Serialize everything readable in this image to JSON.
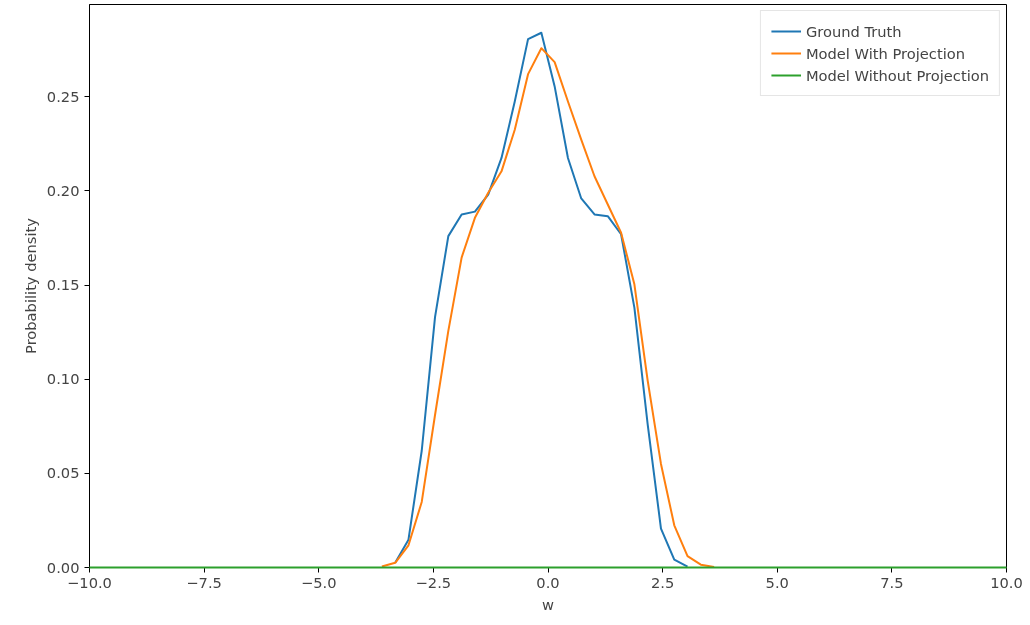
{
  "chart_data": {
    "type": "line",
    "xlabel": "w",
    "ylabel": "Probability density",
    "x": [
      -10,
      -9.71,
      -9.42,
      -9.13,
      -8.841,
      -8.551,
      -8.261,
      -7.971,
      -7.681,
      -7.391,
      -7.101,
      -6.812,
      -6.522,
      -6.232,
      -5.942,
      -5.652,
      -5.362,
      -5.072,
      -4.783,
      -4.493,
      -4.203,
      -3.913,
      -3.623,
      -3.333,
      -3.043,
      -2.754,
      -2.464,
      -2.174,
      -1.884,
      -1.594,
      -1.304,
      -1.014,
      -0.725,
      -0.435,
      -0.145,
      0.145,
      0.435,
      0.725,
      1.014,
      1.304,
      1.594,
      1.884,
      2.174,
      2.464,
      2.754,
      3.043,
      3.333,
      3.623,
      3.913,
      4.203,
      4.493,
      4.783,
      5.072,
      5.362,
      5.652,
      5.942,
      6.232,
      6.522,
      6.812,
      7.101,
      7.391,
      7.681,
      7.971,
      8.261,
      8.551,
      8.841,
      9.13,
      9.42,
      9.71,
      10
    ],
    "series": [
      {
        "name": "Ground Truth",
        "color": "#1f77b4",
        "values": [
          null,
          null,
          null,
          null,
          null,
          null,
          null,
          null,
          null,
          null,
          null,
          null,
          null,
          null,
          null,
          null,
          null,
          null,
          null,
          null,
          null,
          null,
          null,
          0.0025,
          0.0148,
          0.062,
          0.133,
          0.176,
          0.1875,
          0.189,
          0.198,
          0.2175,
          0.2475,
          0.2806,
          0.284,
          0.2555,
          0.2175,
          0.196,
          0.1875,
          0.1866,
          0.177,
          0.138,
          0.076,
          0.0207,
          0.0042,
          0.0005,
          null,
          null,
          null,
          null,
          null,
          null,
          null,
          null,
          null,
          null,
          null,
          null,
          null,
          null,
          null,
          null,
          null,
          null,
          null,
          null,
          null,
          null,
          null,
          null
        ]
      },
      {
        "name": "Model With Projection",
        "color": "#ff7f0e",
        "values": [
          null,
          null,
          null,
          null,
          null,
          null,
          null,
          null,
          null,
          null,
          null,
          null,
          null,
          null,
          null,
          null,
          null,
          null,
          null,
          null,
          null,
          null,
          0.0005,
          0.0025,
          0.0118,
          0.0348,
          0.081,
          0.1257,
          0.1646,
          0.1857,
          0.199,
          0.2104,
          0.2325,
          0.262,
          0.2758,
          0.2684,
          0.2475,
          0.2272,
          0.2078,
          0.1928,
          0.1778,
          0.1504,
          0.0992,
          0.055,
          0.0224,
          0.006,
          0.0015,
          0.0003,
          null,
          null,
          null,
          null,
          null,
          null,
          null,
          null,
          null,
          null,
          null,
          null,
          null,
          null,
          null,
          null,
          null,
          null,
          null,
          null,
          null,
          null
        ]
      },
      {
        "name": "Model Without Projection",
        "color": "#2ca02c",
        "values": [
          0,
          0,
          0,
          0,
          0,
          0,
          0,
          0,
          0,
          0,
          0,
          0,
          0,
          0,
          0,
          0,
          0,
          0,
          0,
          0,
          0,
          0,
          0,
          0,
          0,
          0,
          0,
          0,
          0,
          0,
          0,
          0,
          0,
          0,
          0,
          0,
          0,
          0,
          0,
          0,
          0,
          0,
          0,
          0,
          0,
          0,
          0,
          0,
          0,
          0,
          0,
          0,
          0,
          0,
          0,
          0,
          0,
          0,
          0,
          0,
          0,
          0,
          0,
          0,
          0,
          0,
          0,
          0,
          0,
          0
        ]
      }
    ],
    "xlim": [
      -10,
      10
    ],
    "ylim": [
      0,
      0.299
    ],
    "xticks": [
      {
        "value": -10,
        "label": "−10.0"
      },
      {
        "value": -7.5,
        "label": "−7.5"
      },
      {
        "value": -5,
        "label": "−5.0"
      },
      {
        "value": -2.5,
        "label": "−2.5"
      },
      {
        "value": 0,
        "label": "0.0"
      },
      {
        "value": 2.5,
        "label": "2.5"
      },
      {
        "value": 5,
        "label": "5.0"
      },
      {
        "value": 7.5,
        "label": "7.5"
      },
      {
        "value": 10,
        "label": "10.0"
      }
    ],
    "yticks": [
      {
        "value": 0,
        "label": "0.00"
      },
      {
        "value": 0.05,
        "label": "0.05"
      },
      {
        "value": 0.1,
        "label": "0.10"
      },
      {
        "value": 0.15,
        "label": "0.15"
      },
      {
        "value": 0.2,
        "label": "0.20"
      },
      {
        "value": 0.25,
        "label": "0.25"
      }
    ],
    "grid": false,
    "legend": "top right",
    "marker": "none",
    "line_style": "solid"
  }
}
